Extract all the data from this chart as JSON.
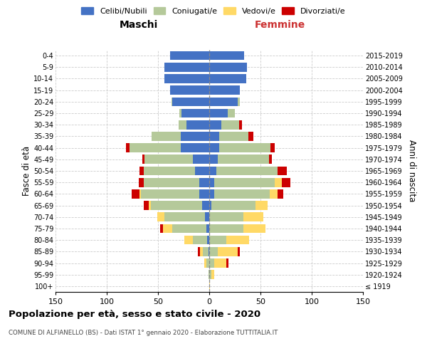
{
  "age_groups": [
    "100+",
    "95-99",
    "90-94",
    "85-89",
    "80-84",
    "75-79",
    "70-74",
    "65-69",
    "60-64",
    "55-59",
    "50-54",
    "45-49",
    "40-44",
    "35-39",
    "30-34",
    "25-29",
    "20-24",
    "15-19",
    "10-14",
    "5-9",
    "0-4"
  ],
  "birth_years": [
    "≤ 1919",
    "1920-1924",
    "1925-1929",
    "1930-1934",
    "1935-1939",
    "1940-1944",
    "1945-1949",
    "1950-1954",
    "1955-1959",
    "1960-1964",
    "1965-1969",
    "1970-1974",
    "1975-1979",
    "1980-1984",
    "1985-1989",
    "1990-1994",
    "1995-1999",
    "2000-2004",
    "2005-2009",
    "2010-2014",
    "2015-2019"
  ],
  "colors": {
    "celibi": "#4472c4",
    "coniugati": "#b5c99a",
    "vedovi": "#ffd966",
    "divorziati": "#cc0000"
  },
  "maschi": {
    "celibi": [
      0,
      0,
      0,
      1,
      2,
      3,
      4,
      7,
      10,
      10,
      14,
      16,
      28,
      28,
      22,
      27,
      36,
      38,
      44,
      44,
      38
    ],
    "coniugati": [
      0,
      1,
      3,
      5,
      14,
      33,
      40,
      50,
      57,
      54,
      50,
      47,
      50,
      28,
      8,
      2,
      1,
      0,
      0,
      0,
      0
    ],
    "vedovi": [
      0,
      0,
      2,
      3,
      8,
      9,
      7,
      2,
      1,
      0,
      0,
      0,
      0,
      0,
      0,
      0,
      0,
      0,
      0,
      0,
      0
    ],
    "divorziati": [
      0,
      0,
      0,
      2,
      0,
      3,
      0,
      5,
      8,
      5,
      4,
      2,
      3,
      0,
      0,
      0,
      0,
      0,
      0,
      0,
      0
    ]
  },
  "femmine": {
    "nubili": [
      0,
      0,
      0,
      0,
      0,
      0,
      0,
      2,
      5,
      5,
      7,
      8,
      10,
      10,
      12,
      18,
      28,
      30,
      36,
      37,
      34
    ],
    "coniugate": [
      0,
      2,
      5,
      8,
      17,
      33,
      33,
      43,
      54,
      59,
      60,
      50,
      50,
      28,
      17,
      7,
      2,
      0,
      0,
      0,
      0
    ],
    "vedove": [
      1,
      3,
      12,
      20,
      22,
      22,
      20,
      12,
      8,
      7,
      0,
      0,
      0,
      0,
      0,
      0,
      0,
      0,
      0,
      0,
      0
    ],
    "divorziate": [
      0,
      0,
      2,
      2,
      0,
      0,
      0,
      0,
      5,
      8,
      9,
      3,
      4,
      5,
      3,
      0,
      0,
      0,
      0,
      0,
      0
    ]
  },
  "xlim": 150,
  "title": "Popolazione per età, sesso e stato civile - 2020",
  "subtitle": "COMUNE DI ALFIANELLO (BS) - Dati ISTAT 1° gennaio 2020 - Elaborazione TUTTITALIA.IT",
  "ylabel_left": "Fasce di età",
  "ylabel_right": "Anni di nascita",
  "xlabel_left": "Maschi",
  "xlabel_right": "Femmine",
  "legend_labels": [
    "Celibi/Nubili",
    "Coniugati/e",
    "Vedovi/e",
    "Divorziati/e"
  ],
  "fig_width": 6.0,
  "fig_height": 5.0,
  "dpi": 100
}
